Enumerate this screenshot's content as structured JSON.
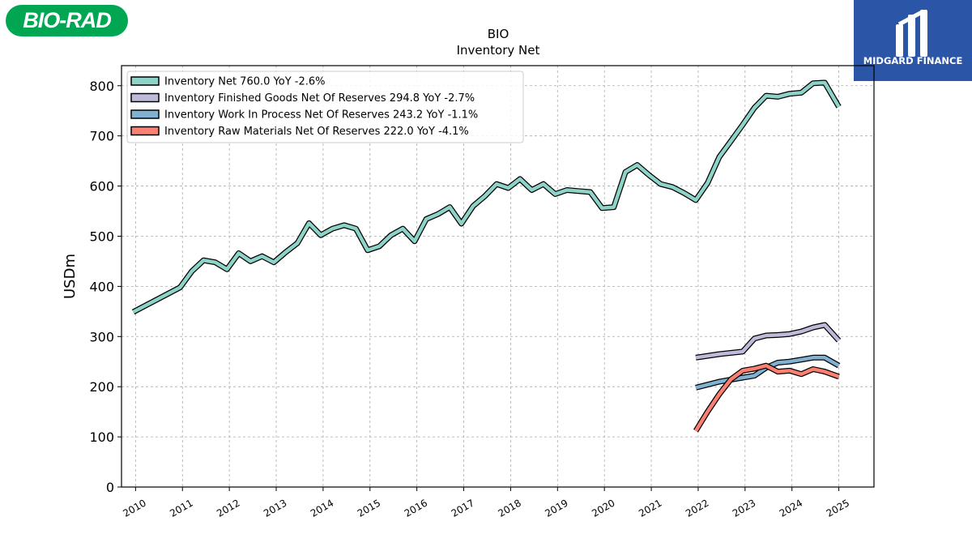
{
  "logos": {
    "left_text": "BIO-RAD",
    "right_text": "MIDGARD FINANCE"
  },
  "colors": {
    "inventory_net": "#8dd3c7",
    "finished_goods": "#bebada",
    "work_in_process": "#80b1d3",
    "raw_materials": "#fb8072"
  },
  "chart_data": {
    "type": "line",
    "title": "BIO",
    "subtitle": "Inventory Net",
    "xlabel": "",
    "ylabel": "USDm",
    "xlim": [
      2009.7,
      2025.75
    ],
    "ylim": [
      0,
      840
    ],
    "yticks": [
      0,
      100,
      200,
      300,
      400,
      500,
      600,
      700,
      800
    ],
    "xticks": [
      "2010",
      "2011",
      "2012",
      "2013",
      "2014",
      "2015",
      "2016",
      "2017",
      "2018",
      "2019",
      "2020",
      "2021",
      "2022",
      "2023",
      "2024",
      "2025"
    ],
    "grid": true,
    "legend_position": "top-left",
    "series": [
      {
        "name": "Inventory Net",
        "legend": "Inventory Net  760.0 YoY -2.6%",
        "color_key": "inventory_net",
        "points": [
          [
            2009.95,
            349
          ],
          [
            2010.95,
            398
          ],
          [
            2011.2,
            430
          ],
          [
            2011.45,
            452
          ],
          [
            2011.7,
            448
          ],
          [
            2011.95,
            434
          ],
          [
            2012.2,
            466
          ],
          [
            2012.45,
            450
          ],
          [
            2012.7,
            460
          ],
          [
            2012.95,
            448
          ],
          [
            2013.2,
            468
          ],
          [
            2013.45,
            486
          ],
          [
            2013.7,
            526
          ],
          [
            2013.95,
            502
          ],
          [
            2014.2,
            515
          ],
          [
            2014.45,
            522
          ],
          [
            2014.7,
            515
          ],
          [
            2014.95,
            472
          ],
          [
            2015.2,
            480
          ],
          [
            2015.45,
            502
          ],
          [
            2015.7,
            515
          ],
          [
            2015.95,
            490
          ],
          [
            2016.2,
            534
          ],
          [
            2016.45,
            544
          ],
          [
            2016.7,
            558
          ],
          [
            2016.95,
            525
          ],
          [
            2017.2,
            560
          ],
          [
            2017.45,
            580
          ],
          [
            2017.7,
            604
          ],
          [
            2017.95,
            596
          ],
          [
            2018.2,
            614
          ],
          [
            2018.45,
            592
          ],
          [
            2018.7,
            604
          ],
          [
            2018.95,
            584
          ],
          [
            2019.2,
            592
          ],
          [
            2019.45,
            590
          ],
          [
            2019.7,
            588
          ],
          [
            2019.95,
            556
          ],
          [
            2020.2,
            558
          ],
          [
            2020.45,
            628
          ],
          [
            2020.7,
            642
          ],
          [
            2020.95,
            622
          ],
          [
            2021.2,
            604
          ],
          [
            2021.45,
            598
          ],
          [
            2021.7,
            586
          ],
          [
            2021.95,
            572
          ],
          [
            2022.2,
            606
          ],
          [
            2022.45,
            658
          ],
          [
            2022.7,
            690
          ],
          [
            2022.95,
            722
          ],
          [
            2023.2,
            756
          ],
          [
            2023.45,
            780
          ],
          [
            2023.7,
            778
          ],
          [
            2023.95,
            784
          ],
          [
            2024.2,
            786
          ],
          [
            2024.45,
            805
          ],
          [
            2024.7,
            806
          ],
          [
            2025.0,
            758
          ]
        ]
      },
      {
        "name": "Inventory Finished Goods Net Of Reserves",
        "legend": "Inventory Finished Goods Net Of Reserves  294.8 YoY -2.7%",
        "color_key": "finished_goods",
        "points": [
          [
            2021.95,
            258
          ],
          [
            2022.45,
            265
          ],
          [
            2022.95,
            270
          ],
          [
            2023.2,
            296
          ],
          [
            2023.45,
            302
          ],
          [
            2023.7,
            303
          ],
          [
            2023.95,
            305
          ],
          [
            2024.2,
            310
          ],
          [
            2024.45,
            318
          ],
          [
            2024.7,
            323
          ],
          [
            2025.0,
            292
          ]
        ]
      },
      {
        "name": "Inventory Work In Process Net Of Reserves",
        "legend": "Inventory Work In Process Net Of Reserves  243.2 YoY -1.1%",
        "color_key": "work_in_process",
        "points": [
          [
            2021.95,
            198
          ],
          [
            2022.45,
            210
          ],
          [
            2022.95,
            218
          ],
          [
            2023.2,
            222
          ],
          [
            2023.45,
            238
          ],
          [
            2023.7,
            248
          ],
          [
            2023.95,
            250
          ],
          [
            2024.2,
            254
          ],
          [
            2024.45,
            258
          ],
          [
            2024.7,
            258
          ],
          [
            2025.0,
            242
          ]
        ]
      },
      {
        "name": "Inventory Raw Materials Net Of Reserves",
        "legend": "Inventory Raw Materials Net Of Reserves  222.0 YoY -4.1%",
        "color_key": "raw_materials",
        "points": [
          [
            2021.95,
            112
          ],
          [
            2022.2,
            150
          ],
          [
            2022.45,
            185
          ],
          [
            2022.7,
            215
          ],
          [
            2022.95,
            232
          ],
          [
            2023.2,
            236
          ],
          [
            2023.45,
            242
          ],
          [
            2023.7,
            230
          ],
          [
            2023.95,
            232
          ],
          [
            2024.2,
            225
          ],
          [
            2024.45,
            235
          ],
          [
            2024.7,
            230
          ],
          [
            2025.0,
            220
          ]
        ]
      }
    ]
  }
}
